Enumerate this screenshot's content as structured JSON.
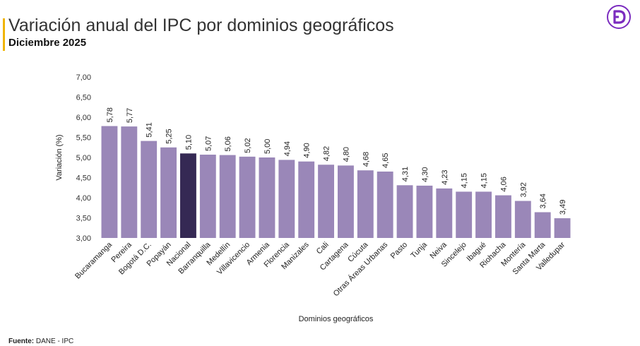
{
  "header": {
    "title": "Variación anual del IPC por dominios geográficos",
    "subtitle": "Diciembre 2025"
  },
  "logo": {
    "icon": "dane-d-logo-icon",
    "color": "#7b2cbf"
  },
  "footer": {
    "source_label": "Fuente:",
    "source_value": "DANE - IPC"
  },
  "chart_data": {
    "type": "bar",
    "categories": [
      "Bucaramanga",
      "Pereira",
      "Bogotá D.C.",
      "Popayán",
      "Nacional",
      "Barranquilla",
      "Medellín",
      "Villavicencio",
      "Armenia",
      "Florencia",
      "Manizales",
      "Cali",
      "Cartagena",
      "Cúcuta",
      "Otras Áreas Urbanas",
      "Pasto",
      "Tunja",
      "Neiva",
      "Sincelejo",
      "Ibagué",
      "Riohacha",
      "Montería",
      "Santa Marta",
      "Valledupar"
    ],
    "values": [
      5.78,
      5.77,
      5.41,
      5.25,
      5.1,
      5.07,
      5.06,
      5.02,
      5.0,
      4.94,
      4.9,
      4.82,
      4.8,
      4.68,
      4.65,
      4.31,
      4.3,
      4.23,
      4.15,
      4.15,
      4.06,
      3.92,
      3.64,
      3.49
    ],
    "value_labels": [
      "5,78",
      "5,77",
      "5,41",
      "5,25",
      "5,10",
      "5,07",
      "5,06",
      "5,02",
      "5,00",
      "4,94",
      "4,90",
      "4,82",
      "4,80",
      "4,68",
      "4,65",
      "4,31",
      "4,30",
      "4,23",
      "4,15",
      "4,15",
      "4,06",
      "3,92",
      "3,64",
      "3,49"
    ],
    "ylim": [
      3.0,
      7.0
    ],
    "yticks": [
      3.0,
      3.5,
      4.0,
      4.5,
      5.0,
      5.5,
      6.0,
      6.5,
      7.0
    ],
    "ytick_labels": [
      "3,00",
      "3,50",
      "4,00",
      "4,50",
      "5,00",
      "5,50",
      "6,00",
      "6,50",
      "7,00"
    ],
    "xlabel": "Dominios geográficos",
    "ylabel": "Variación (%)",
    "grid": false,
    "legend": "none",
    "colors": {
      "bar": "#9a87b8",
      "highlight": "#352954",
      "highlight_category": "Nacional"
    }
  }
}
